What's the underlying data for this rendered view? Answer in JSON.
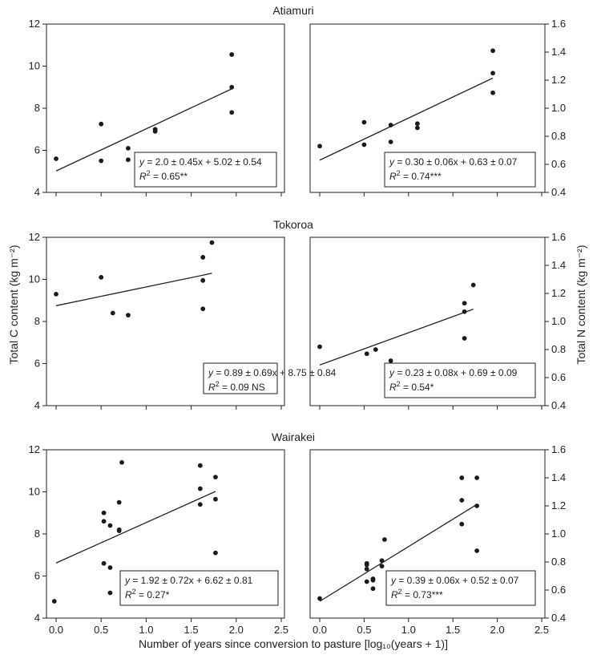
{
  "figure": {
    "ylabel_left": "Total C content (kg m⁻²)",
    "ylabel_right": "Total N content (kg m⁻²)",
    "xlabel": "Number of years since conversion to pasture [log₁₀(years + 1)]",
    "sites": [
      "Atiamuri",
      "Tokoroa",
      "Wairakei"
    ]
  },
  "chart_data": [
    {
      "type": "scatter",
      "site": "Atiamuri",
      "quantity": "Total C",
      "xlim": [
        0,
        2.5
      ],
      "ylim": [
        4,
        12
      ],
      "x_ticks": [
        0,
        0.5,
        1,
        1.5,
        2,
        2.5
      ],
      "y_ticks": [
        4,
        6,
        8,
        10,
        12
      ],
      "points": [
        [
          0.0,
          5.6
        ],
        [
          0.5,
          7.25
        ],
        [
          0.5,
          5.5
        ],
        [
          0.8,
          6.1
        ],
        [
          0.8,
          5.55
        ],
        [
          1.1,
          7.0
        ],
        [
          1.1,
          6.9
        ],
        [
          1.95,
          10.55
        ],
        [
          1.95,
          9.0
        ],
        [
          1.95,
          7.8
        ]
      ],
      "fit": {
        "intercept": 5.02,
        "slope": 2.0,
        "x_range": [
          0.0,
          1.95
        ]
      },
      "equation": "= 2.0 ± 0.45x + 5.02 ± 0.54",
      "r2": "= 0.65**"
    },
    {
      "type": "scatter",
      "site": "Atiamuri",
      "quantity": "Total N",
      "xlim": [
        0,
        2.5
      ],
      "ylim": [
        0.4,
        1.6
      ],
      "x_ticks": [
        0,
        0.5,
        1,
        1.5,
        2,
        2.5
      ],
      "y_ticks": [
        0.4,
        0.6,
        0.8,
        1.0,
        1.2,
        1.4,
        1.6
      ],
      "points": [
        [
          0.0,
          0.73
        ],
        [
          0.5,
          0.9
        ],
        [
          0.5,
          0.74
        ],
        [
          0.8,
          0.88
        ],
        [
          0.8,
          0.76
        ],
        [
          1.1,
          0.89
        ],
        [
          1.1,
          0.86
        ],
        [
          1.95,
          1.41
        ],
        [
          1.95,
          1.25
        ],
        [
          1.95,
          1.11
        ]
      ],
      "fit": {
        "intercept": 0.63,
        "slope": 0.3,
        "x_range": [
          0.0,
          1.95
        ]
      },
      "equation": "= 0.30 ± 0.06x + 0.63 ± 0.07",
      "r2": "= 0.74***"
    },
    {
      "type": "scatter",
      "site": "Tokoroa",
      "quantity": "Total C",
      "xlim": [
        0,
        2.5
      ],
      "ylim": [
        4,
        12
      ],
      "x_ticks": [
        0,
        0.5,
        1,
        1.5,
        2,
        2.5
      ],
      "y_ticks": [
        4,
        6,
        8,
        10,
        12
      ],
      "points": [
        [
          0.0,
          9.3
        ],
        [
          0.5,
          10.1
        ],
        [
          0.63,
          8.4
        ],
        [
          0.8,
          8.3
        ],
        [
          1.63,
          11.05
        ],
        [
          1.63,
          9.95
        ],
        [
          1.63,
          8.6
        ],
        [
          1.73,
          11.75
        ]
      ],
      "fit": {
        "intercept": 8.75,
        "slope": 0.89,
        "x_range": [
          0.0,
          1.73
        ]
      },
      "equation": "= 0.89 ± 0.69x + 8.75 ± 0.84",
      "r2": "= 0.09 NS"
    },
    {
      "type": "scatter",
      "site": "Tokoroa",
      "quantity": "Total N",
      "xlim": [
        0,
        2.5
      ],
      "ylim": [
        0.4,
        1.6
      ],
      "x_ticks": [
        0,
        0.5,
        1,
        1.5,
        2,
        2.5
      ],
      "y_ticks": [
        0.4,
        0.6,
        0.8,
        1.0,
        1.2,
        1.4,
        1.6
      ],
      "points": [
        [
          0.0,
          0.82
        ],
        [
          0.53,
          0.77
        ],
        [
          0.63,
          0.8
        ],
        [
          0.8,
          0.72
        ],
        [
          1.63,
          1.13
        ],
        [
          1.63,
          1.07
        ],
        [
          1.63,
          0.88
        ],
        [
          1.73,
          1.26
        ]
      ],
      "fit": {
        "intercept": 0.69,
        "slope": 0.23,
        "x_range": [
          0.0,
          1.73
        ]
      },
      "equation": "= 0.23 ± 0.08x + 0.69 ± 0.09",
      "r2": "= 0.54*"
    },
    {
      "type": "scatter",
      "site": "Wairakei",
      "quantity": "Total C",
      "xlim": [
        0,
        2.5
      ],
      "ylim": [
        4,
        12
      ],
      "x_ticks": [
        0,
        0.5,
        1,
        1.5,
        2,
        2.5
      ],
      "y_ticks": [
        4,
        6,
        8,
        10,
        12
      ],
      "points": [
        [
          -0.02,
          4.8
        ],
        [
          0.53,
          9.0
        ],
        [
          0.53,
          8.6
        ],
        [
          0.53,
          6.6
        ],
        [
          0.6,
          8.4
        ],
        [
          0.6,
          6.4
        ],
        [
          0.6,
          5.2
        ],
        [
          0.7,
          9.5
        ],
        [
          0.7,
          8.2
        ],
        [
          0.7,
          8.15
        ],
        [
          0.73,
          11.4
        ],
        [
          1.6,
          11.25
        ],
        [
          1.6,
          10.15
        ],
        [
          1.6,
          9.4
        ],
        [
          1.77,
          10.7
        ],
        [
          1.77,
          9.65
        ],
        [
          1.77,
          7.1
        ]
      ],
      "fit": {
        "intercept": 6.62,
        "slope": 1.92,
        "x_range": [
          0.0,
          1.77
        ]
      },
      "equation": "= 1.92 ± 0.72x + 6.62 ± 0.81",
      "r2": "= 0.27*"
    },
    {
      "type": "scatter",
      "site": "Wairakei",
      "quantity": "Total N",
      "xlim": [
        0,
        2.5
      ],
      "ylim": [
        0.4,
        1.6
      ],
      "x_ticks": [
        0,
        0.5,
        1,
        1.5,
        2,
        2.5
      ],
      "y_ticks": [
        0.4,
        0.6,
        0.8,
        1.0,
        1.2,
        1.4,
        1.6
      ],
      "points": [
        [
          0.0,
          0.54
        ],
        [
          0.53,
          0.79
        ],
        [
          0.53,
          0.78
        ],
        [
          0.53,
          0.75
        ],
        [
          0.53,
          0.66
        ],
        [
          0.6,
          0.68
        ],
        [
          0.6,
          0.67
        ],
        [
          0.6,
          0.61
        ],
        [
          0.7,
          0.81
        ],
        [
          0.7,
          0.77
        ],
        [
          0.73,
          0.96
        ],
        [
          1.6,
          1.4
        ],
        [
          1.6,
          1.24
        ],
        [
          1.6,
          1.07
        ],
        [
          1.77,
          1.4
        ],
        [
          1.77,
          1.2
        ],
        [
          1.77,
          0.88
        ]
      ],
      "fit": {
        "intercept": 0.52,
        "slope": 0.39,
        "x_range": [
          0.0,
          1.77
        ]
      },
      "equation": "= 0.39 ± 0.06x + 0.52 ± 0.07",
      "r2": "= 0.73***"
    }
  ]
}
